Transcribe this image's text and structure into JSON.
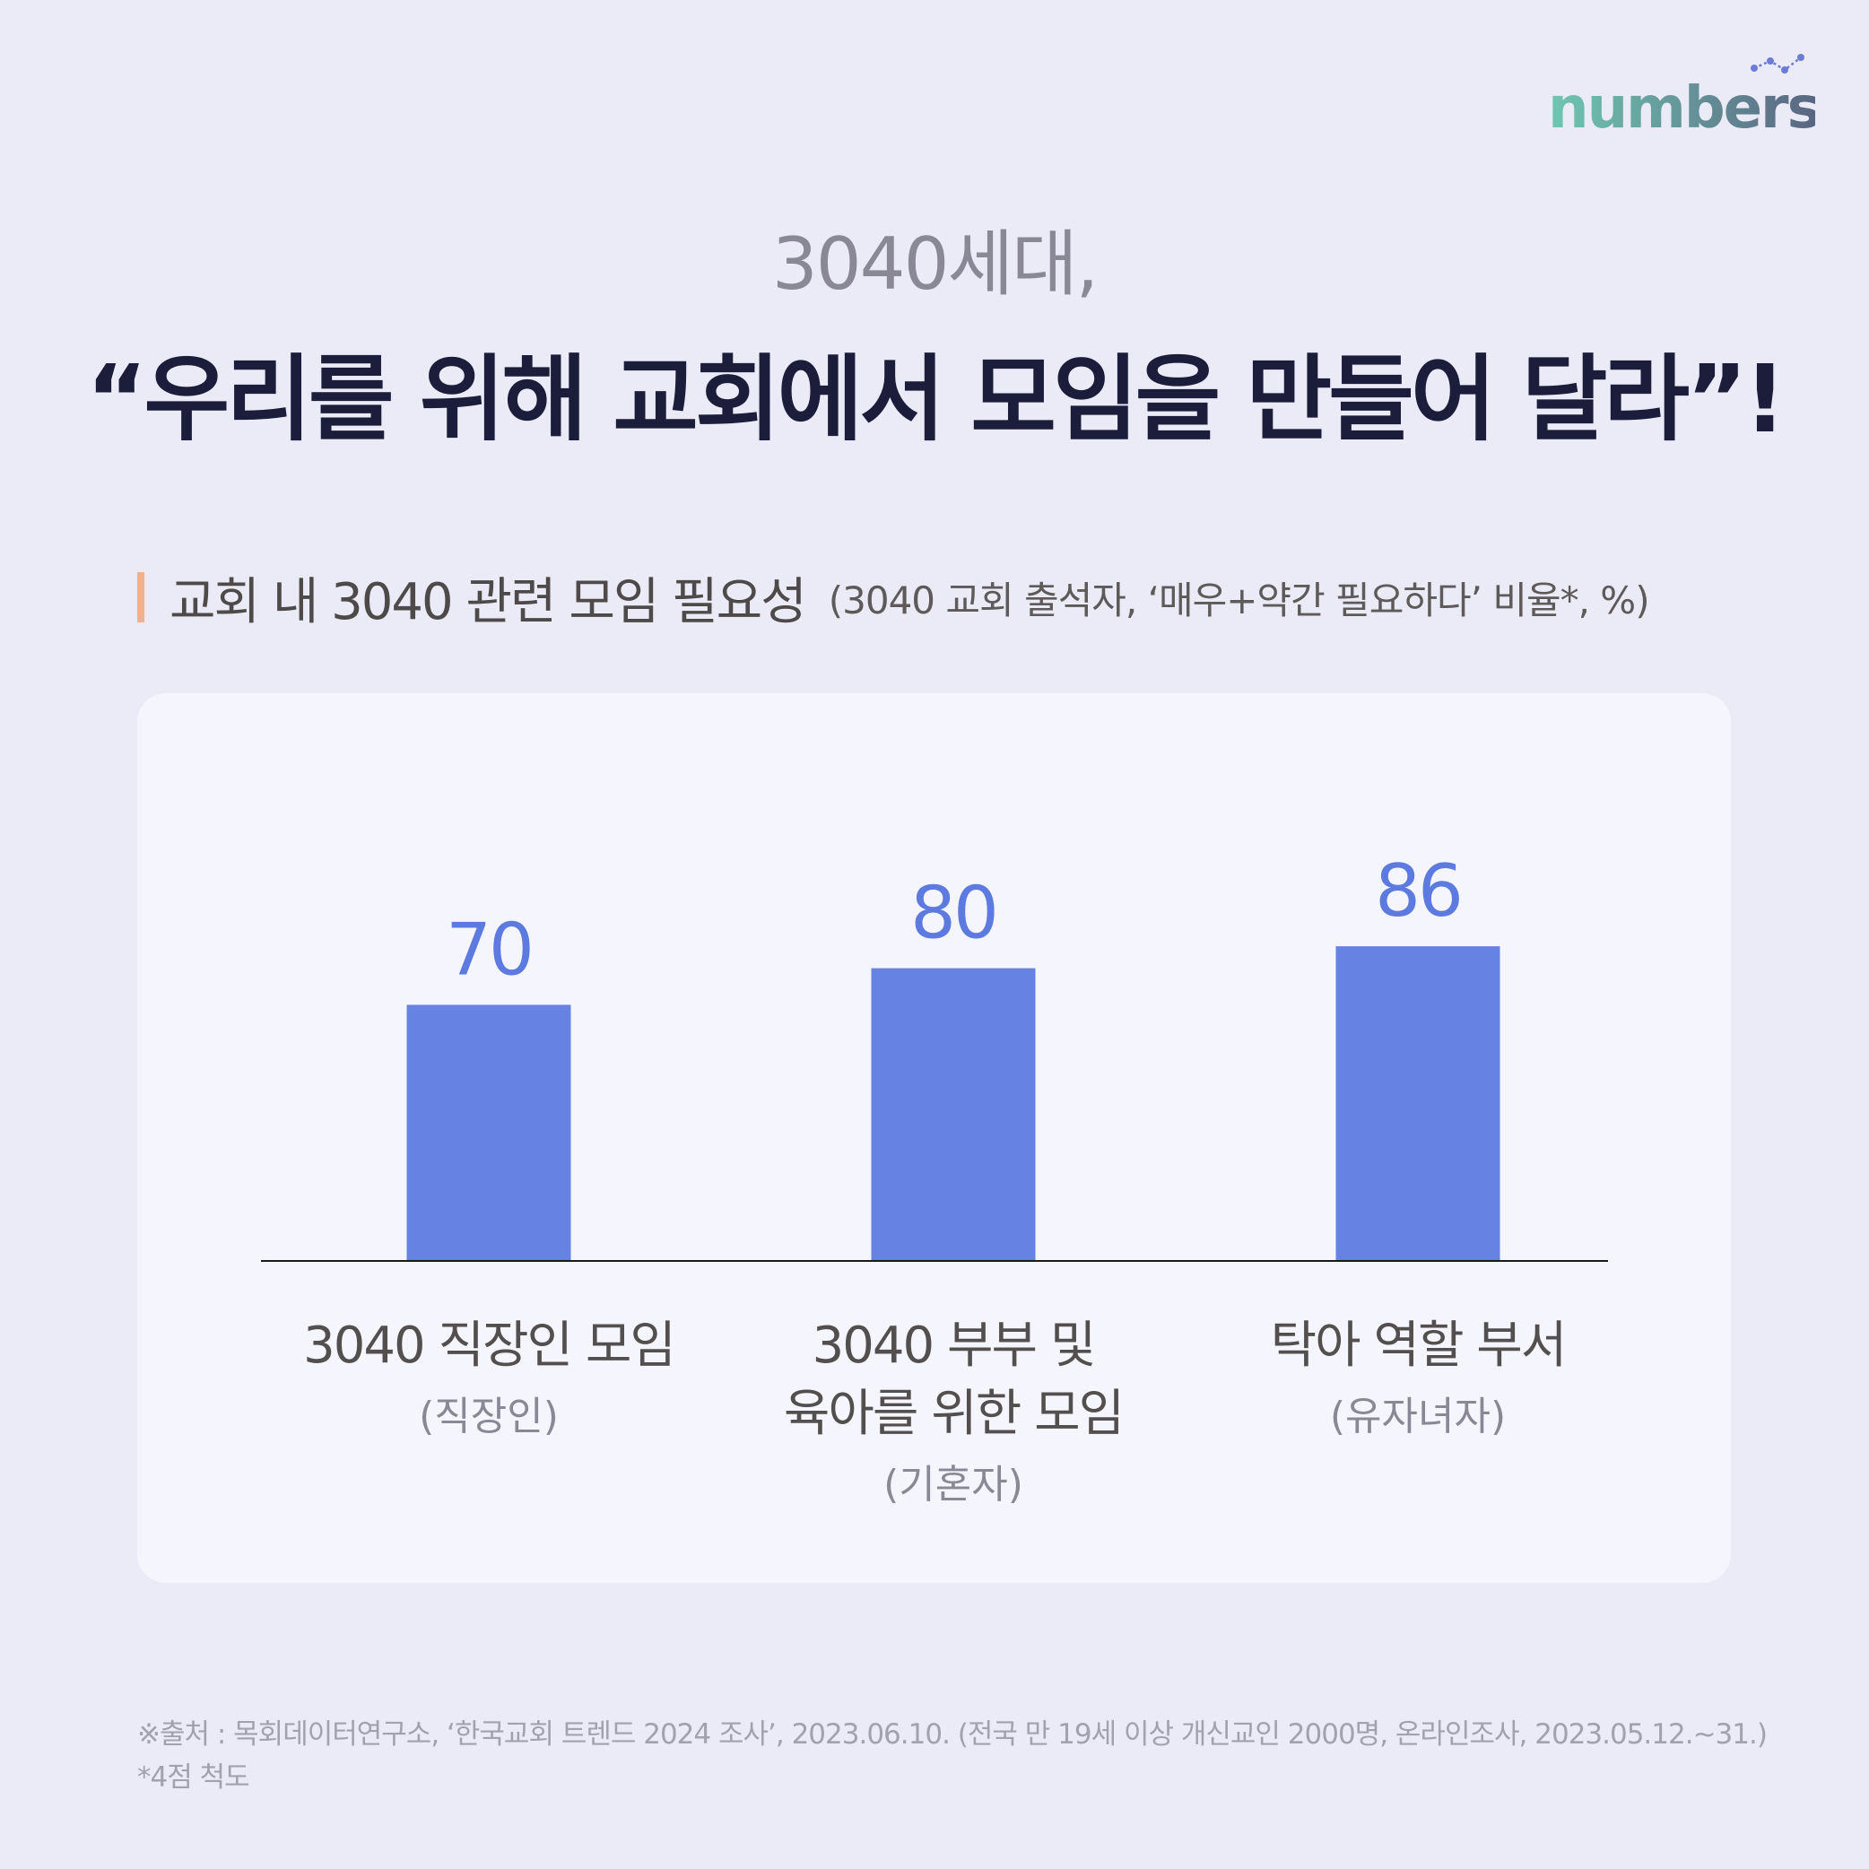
{
  "brand": {
    "name": "numbers",
    "colors": {
      "gradient_start": "#6fc7b2",
      "gradient_end": "#5a6480",
      "dot": "#6b7bd6"
    }
  },
  "header": {
    "kicker": "3040세대,",
    "headline": "“우리를 위해 교회에서 모임을 만들어 달라”!"
  },
  "section": {
    "title": "교회 내 3040 관련 모임 필요성",
    "note": "(3040 교회 출석자, ‘매우+약간 필요하다’ 비율*, %)"
  },
  "chart_data": {
    "type": "bar",
    "categories": [
      "3040 직장인 모임",
      "3040 부부 및 육아를 위한 모임",
      "탁아 역할 부서"
    ],
    "category_lines": [
      [
        "3040 직장인 모임"
      ],
      [
        "3040 부부 및",
        "육아를 위한 모임"
      ],
      [
        "탁아 역할 부서"
      ]
    ],
    "groups": [
      "(직장인)",
      "(기혼자)",
      "(유자녀자)"
    ],
    "values": [
      70,
      80,
      86
    ],
    "value_labels": [
      "70",
      "80",
      "86"
    ],
    "ylim": [
      0,
      100
    ],
    "bar_color": "#6682e3",
    "label_color": "#5c7ae0",
    "grid": false,
    "legend": "none"
  },
  "footer": {
    "source": "※출처 : 목회데이터연구소, ‘한국교회 트렌드 2024 조사’, 2023.06.10. (전국 만 19세 이상 개신교인 2000명, 온라인조사, 2023.05.12.~31.)",
    "scale_note": "*4점 척도"
  }
}
